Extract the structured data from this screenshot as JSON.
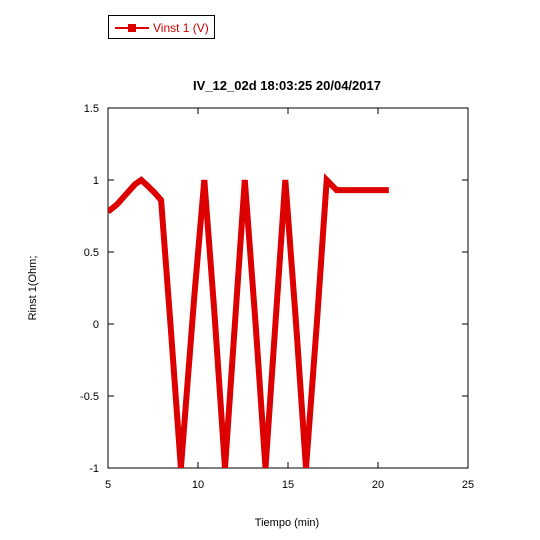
{
  "chart_data": {
    "type": "line",
    "title": "IV_12_02d 18:03:25  20/04/2017",
    "xlabel": "Tiempo (min)",
    "ylabel": "Rinst 1(Ohm;",
    "xlim": [
      5,
      25
    ],
    "ylim": [
      -1,
      1.5
    ],
    "xticks": [
      "5",
      "10",
      "15",
      "20",
      "25"
    ],
    "yticks": [
      "1.5",
      "1",
      "0.5",
      "0",
      "-0.5",
      "-1"
    ],
    "grid": false,
    "legend_position": "top-left",
    "series": [
      {
        "name": "Vinst 1 (V)",
        "color": "#dd0000",
        "x": [
          5.0,
          5.5,
          6.0,
          6.5,
          6.85,
          7.2,
          7.6,
          7.95,
          8.5,
          9.05,
          9.8,
          10.35,
          10.9,
          11.5,
          12.05,
          12.6,
          13.2,
          13.75,
          14.3,
          14.85,
          15.45,
          16.0,
          16.6,
          17.15,
          17.7,
          18.25,
          18.75,
          19.0,
          19.5,
          20.0,
          20.6
        ],
        "y": [
          0.78,
          0.83,
          0.9,
          0.97,
          1.0,
          0.96,
          0.91,
          0.86,
          -0.05,
          -1.0,
          0.2,
          1.0,
          0.1,
          -1.0,
          0.0,
          1.0,
          0.0,
          -1.0,
          0.0,
          1.0,
          0.0,
          -1.0,
          0.0,
          1.0,
          0.93,
          0.93,
          0.93,
          0.93,
          0.93,
          0.93,
          0.93
        ]
      }
    ]
  }
}
